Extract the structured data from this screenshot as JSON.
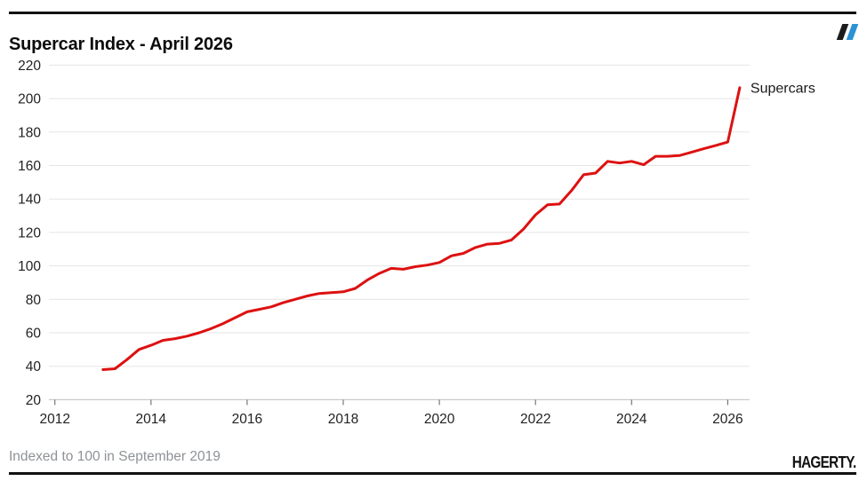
{
  "header": {
    "title": "Supercar Index - April 2026",
    "logo_icon": "hagerty-double-slash-icon",
    "logo_colors": {
      "dark": "#1c1c1c",
      "blue": "#2a93d5"
    }
  },
  "footer": {
    "note": "Indexed to 100 in September 2019",
    "brand": "HAGERTY."
  },
  "chart_data": {
    "type": "line",
    "title": "Supercar Index - April 2026",
    "xlabel": "",
    "ylabel": "",
    "grid": "horizontal",
    "grid_color": "#e5e5e5",
    "axis_color": "#c9c9c9",
    "tick_color": "#777777",
    "label_color": "#222222",
    "xlim": [
      2011.88,
      2026.46
    ],
    "ylim": [
      20,
      220
    ],
    "x_ticks": [
      2012,
      2014,
      2016,
      2018,
      2020,
      2022,
      2024,
      2026
    ],
    "y_ticks": [
      20,
      40,
      60,
      80,
      100,
      120,
      140,
      160,
      180,
      200,
      220
    ],
    "legend_position": "end-of-line",
    "end_label": "Supercars",
    "series": [
      {
        "name": "Supercars",
        "color": "#dd1111",
        "x": [
          2013,
          2013.25,
          2013.5,
          2013.75,
          2014,
          2014.25,
          2014.5,
          2014.75,
          2015,
          2015.25,
          2015.5,
          2015.75,
          2016,
          2016.25,
          2016.5,
          2016.75,
          2017,
          2017.25,
          2017.5,
          2017.75,
          2018,
          2018.25,
          2018.5,
          2018.75,
          2019,
          2019.25,
          2019.5,
          2019.75,
          2020,
          2020.25,
          2020.5,
          2020.75,
          2021,
          2021.25,
          2021.5,
          2021.75,
          2022,
          2022.25,
          2022.5,
          2022.75,
          2023,
          2023.25,
          2023.5,
          2023.75,
          2024,
          2024.25,
          2024.5,
          2024.75,
          2025,
          2025.25,
          2025.5,
          2025.75,
          2026,
          2026.25
        ],
        "values": [
          38,
          38.5,
          44,
          50,
          52.5,
          55.5,
          56.5,
          58,
          60,
          62.5,
          65.5,
          69,
          72.5,
          74,
          75.5,
          78,
          80,
          82,
          83.5,
          84,
          84.5,
          86.5,
          91.5,
          95.5,
          98.5,
          98,
          99.5,
          100.5,
          102,
          106,
          107.5,
          111,
          113,
          113.5,
          115.5,
          122,
          130.5,
          136.5,
          137,
          145,
          154.5,
          155.5,
          162.5,
          161.5,
          162.5,
          160.5,
          165.5,
          165.5,
          166,
          168,
          170,
          172,
          174,
          206.5
        ]
      }
    ]
  }
}
